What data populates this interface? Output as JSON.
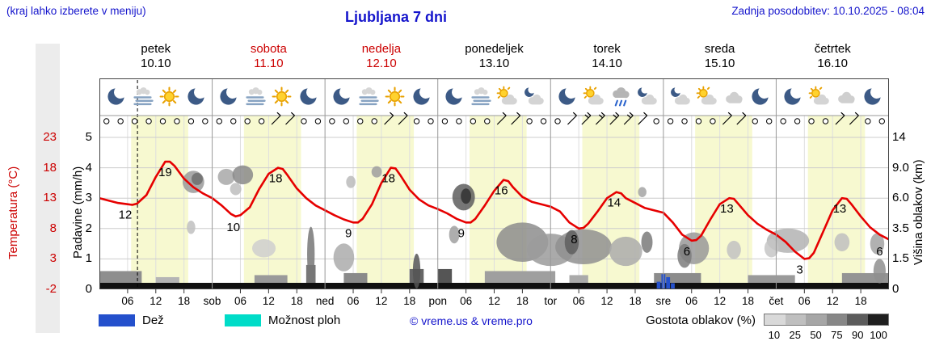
{
  "header": {
    "hint": "(kraj lahko izberete v meniju)",
    "title": "Ljubljana 7 dni",
    "updated": "Zadnja posodobitev: 10.10.2025 - 08:04"
  },
  "axes": {
    "temp_label": "Temperatura (°C)",
    "precip_label": "Padavine (mm/h)",
    "cloud_label": "Višina oblakov (km)",
    "temp_ticks": [
      "23",
      "18",
      "13",
      "8",
      "3",
      "-2"
    ],
    "precip_ticks": [
      "5",
      "4",
      "3",
      "2",
      "1",
      "0"
    ],
    "cloud_ticks": [
      "14",
      "9.0",
      "6.0",
      "3.5",
      "1.5",
      "0"
    ]
  },
  "days": [
    {
      "name": "petek",
      "date": "10.10",
      "color": "#000000",
      "abbrev": null,
      "icons": [
        "moon",
        "fog",
        "sun",
        "moon"
      ]
    },
    {
      "name": "sobota",
      "date": "11.10",
      "color": "#cc0000",
      "abbrev": "sob",
      "icons": [
        "moon",
        "fog",
        "sun",
        "moon"
      ]
    },
    {
      "name": "nedelja",
      "date": "12.10",
      "color": "#cc0000",
      "abbrev": "ned",
      "icons": [
        "moon",
        "fog",
        "sun",
        "moon"
      ]
    },
    {
      "name": "ponedeljek",
      "date": "13.10",
      "color": "#000000",
      "abbrev": "pon",
      "icons": [
        "moon",
        "fog",
        "sun-cloud",
        "moon-cloud"
      ]
    },
    {
      "name": "torek",
      "date": "14.10",
      "color": "#000000",
      "abbrev": "tor",
      "icons": [
        "moon",
        "sun-cloud",
        "rain",
        "moon-cloud"
      ]
    },
    {
      "name": "sreda",
      "date": "15.10",
      "color": "#000000",
      "abbrev": "sre",
      "icons": [
        "moon-cloud",
        "sun-cloud",
        "cloud",
        "moon"
      ]
    },
    {
      "name": "četrtek",
      "date": "16.10",
      "color": "#000000",
      "abbrev": "čet",
      "icons": [
        "moon",
        "sun-cloud",
        "cloud",
        "moon"
      ]
    }
  ],
  "legend": {
    "rain_label": "Dež",
    "rain_color": "#2450cc",
    "showers_label": "Možnost ploh",
    "showers_color": "#00dcc8",
    "credit": "© vreme.us & vreme.pro",
    "cloud_density_label": "Gostota oblakov (%)",
    "density_values": [
      "10",
      "25",
      "50",
      "75",
      "90",
      "100"
    ],
    "density_colors": [
      "#d9d9d9",
      "#bfbfbf",
      "#a6a6a6",
      "#878787",
      "#5c5c5c",
      "#1f1f1f"
    ]
  },
  "chart_data": {
    "type": "line",
    "title": "Ljubljana 7 dni",
    "x_unit": "hours from 10.10. 00:00 (7 days)",
    "x_range": [
      0,
      168
    ],
    "now_hour": 8.1,
    "day_band": [
      6.75,
      18.9
    ],
    "time_tick_labels": [
      "06",
      "12",
      "18"
    ],
    "colors": {
      "day_band": "#f7f9d0",
      "temp_line": "#e60000",
      "grid": "#cccccc",
      "frame": "#444444"
    },
    "temp_axis": {
      "tick_values": [
        -2,
        3,
        8,
        13,
        18,
        23
      ],
      "unit": "°C"
    },
    "precip_axis": {
      "tick_values": [
        0,
        1,
        2,
        3,
        4,
        5
      ],
      "unit": "mm/h"
    },
    "cloud_axis": {
      "tick_values_km": [
        0,
        1.5,
        3.5,
        6,
        9,
        14
      ],
      "unit": "km"
    },
    "temperature_points": [
      [
        0,
        13
      ],
      [
        2,
        12.6
      ],
      [
        4,
        12.2
      ],
      [
        6,
        12
      ],
      [
        7,
        11.9
      ],
      [
        8,
        12.1
      ],
      [
        10,
        13.5
      ],
      [
        12,
        16.5
      ],
      [
        14,
        19
      ],
      [
        15,
        19
      ],
      [
        16,
        18.3
      ],
      [
        18,
        16.2
      ],
      [
        20,
        14.8
      ],
      [
        22,
        13.8
      ],
      [
        24,
        13
      ],
      [
        26,
        11.8
      ],
      [
        28,
        10.4
      ],
      [
        29,
        10
      ],
      [
        30,
        10.2
      ],
      [
        32,
        11.5
      ],
      [
        34,
        14.5
      ],
      [
        36,
        17
      ],
      [
        38,
        18
      ],
      [
        39,
        17.8
      ],
      [
        40,
        16.8
      ],
      [
        42,
        14.6
      ],
      [
        44,
        13
      ],
      [
        46,
        11.8
      ],
      [
        48,
        11
      ],
      [
        50,
        10.2
      ],
      [
        52,
        9.5
      ],
      [
        54,
        9
      ],
      [
        55,
        9
      ],
      [
        56,
        9.6
      ],
      [
        58,
        12
      ],
      [
        60,
        15.5
      ],
      [
        62,
        18
      ],
      [
        63,
        17.9
      ],
      [
        64,
        16.8
      ],
      [
        66,
        14.4
      ],
      [
        68,
        12.8
      ],
      [
        70,
        11.8
      ],
      [
        72,
        11.2
      ],
      [
        74,
        10.5
      ],
      [
        76,
        9.6
      ],
      [
        78,
        9
      ],
      [
        79,
        9
      ],
      [
        80,
        9.6
      ],
      [
        82,
        11.8
      ],
      [
        84,
        14.2
      ],
      [
        86,
        16
      ],
      [
        87,
        15.8
      ],
      [
        88,
        14.8
      ],
      [
        90,
        13.2
      ],
      [
        92,
        12.4
      ],
      [
        94,
        12
      ],
      [
        96,
        11.6
      ],
      [
        98,
        10.8
      ],
      [
        100,
        9
      ],
      [
        102,
        8
      ],
      [
        103,
        8.1
      ],
      [
        104,
        8.8
      ],
      [
        106,
        10.8
      ],
      [
        108,
        13
      ],
      [
        110,
        14
      ],
      [
        111,
        13.8
      ],
      [
        112,
        13
      ],
      [
        114,
        12.2
      ],
      [
        116,
        11.4
      ],
      [
        118,
        11
      ],
      [
        120,
        10.6
      ],
      [
        122,
        9
      ],
      [
        124,
        7
      ],
      [
        126,
        6
      ],
      [
        127,
        6.1
      ],
      [
        128,
        6.8
      ],
      [
        130,
        9.5
      ],
      [
        132,
        12
      ],
      [
        134,
        13
      ],
      [
        135,
        12.9
      ],
      [
        136,
        12
      ],
      [
        138,
        10.2
      ],
      [
        140,
        8.8
      ],
      [
        142,
        7.8
      ],
      [
        144,
        7
      ],
      [
        146,
        5.8
      ],
      [
        148,
        4.2
      ],
      [
        150,
        3
      ],
      [
        151,
        3.1
      ],
      [
        152,
        4
      ],
      [
        154,
        7.5
      ],
      [
        156,
        11
      ],
      [
        158,
        13
      ],
      [
        159,
        12.9
      ],
      [
        160,
        12
      ],
      [
        162,
        10
      ],
      [
        164,
        8.2
      ],
      [
        166,
        7
      ],
      [
        168,
        6.2
      ]
    ],
    "temperature_labels": [
      [
        5.5,
        12
      ],
      [
        14,
        19
      ],
      [
        28.5,
        10
      ],
      [
        37.5,
        18
      ],
      [
        53,
        9
      ],
      [
        61.5,
        18
      ],
      [
        77,
        9
      ],
      [
        85.5,
        16
      ],
      [
        101,
        8
      ],
      [
        109.5,
        14
      ],
      [
        125,
        6
      ],
      [
        133.5,
        13
      ],
      [
        149,
        3
      ],
      [
        157.5,
        13
      ],
      [
        166,
        6
      ]
    ],
    "wind": {
      "symbol_step_h": 3,
      "first_h": 1.5,
      "calm_symbol": "circle",
      "barbs": [
        [
          37.5,
          1
        ],
        [
          40.5,
          1
        ],
        [
          61.5,
          1
        ],
        [
          64.5,
          1
        ],
        [
          85.5,
          1
        ],
        [
          88.5,
          1
        ],
        [
          100.5,
          1
        ],
        [
          103.5,
          2
        ],
        [
          106.5,
          2
        ],
        [
          109.5,
          2
        ],
        [
          112.5,
          2
        ],
        [
          115.5,
          1
        ],
        [
          133.5,
          1
        ],
        [
          136.5,
          1
        ],
        [
          157.5,
          1
        ],
        [
          160.5,
          1
        ]
      ]
    },
    "cloud_blobs": [
      [
        20,
        7.6,
        2.3,
        1.1,
        "#9a9a9a"
      ],
      [
        20.8,
        7.9,
        1.2,
        0.6,
        "#6f6f6f"
      ],
      [
        19.5,
        3.6,
        0.9,
        0.5,
        "#c0c0c0"
      ],
      [
        27,
        8.1,
        1.8,
        0.8,
        "#a8a8a8"
      ],
      [
        30.5,
        8.3,
        2.2,
        1.0,
        "#8a8a8a"
      ],
      [
        29,
        6.9,
        1.2,
        0.6,
        "#bdbdbd"
      ],
      [
        35,
        2.2,
        2.5,
        0.6,
        "#cfcfcf"
      ],
      [
        45,
        1.8,
        0.8,
        1.6,
        "#777777"
      ],
      [
        52,
        1.6,
        2.2,
        0.8,
        "#ababab"
      ],
      [
        53.5,
        7.6,
        1.0,
        0.6,
        "#bbbbbb"
      ],
      [
        59,
        8.6,
        1.1,
        0.6,
        "#9f9f9f"
      ],
      [
        67.5,
        0.9,
        0.8,
        0.9,
        "#555555"
      ],
      [
        77.5,
        6.1,
        2.4,
        1.2,
        "#5e5e5e"
      ],
      [
        78,
        6.2,
        1.1,
        0.7,
        "#333333"
      ],
      [
        75.5,
        3.1,
        1.1,
        0.6,
        "#a0a0a0"
      ],
      [
        90,
        2.6,
        5.5,
        1.3,
        "#8d8d8d"
      ],
      [
        96,
        2.1,
        5.0,
        1.0,
        "#9b9b9b"
      ],
      [
        103,
        2.3,
        6.0,
        1.1,
        "#909090"
      ],
      [
        100.5,
        2.6,
        1.5,
        0.8,
        "#5f5f5f"
      ],
      [
        112,
        2.0,
        3.5,
        0.9,
        "#ababab"
      ],
      [
        116.5,
        2.6,
        1.2,
        0.7,
        "#7a7a7a"
      ],
      [
        115.5,
        6.6,
        0.9,
        0.5,
        "#a5a5a5"
      ],
      [
        126.5,
        2.2,
        3.2,
        1.0,
        "#999999"
      ],
      [
        124.5,
        1.7,
        1.5,
        0.7,
        "#7c7c7c"
      ],
      [
        135,
        2.1,
        1.5,
        0.6,
        "#c2c2c2"
      ],
      [
        146.5,
        2.7,
        4.5,
        0.8,
        "#b3b3b3"
      ],
      [
        143,
        2.2,
        1.5,
        0.6,
        "#c6c6c6"
      ],
      [
        158,
        2.6,
        1.6,
        0.6,
        "#c0c0c0"
      ],
      [
        165.5,
        2.5,
        1.5,
        0.7,
        "#a3a3a3"
      ],
      [
        166,
        0.9,
        1.3,
        0.6,
        "#8f8f8f"
      ]
    ],
    "ground_strip": {
      "top_km": 0.32,
      "color": "#101010"
    },
    "ground_fringes": [
      [
        0,
        9,
        0.9,
        "#8e8e8e"
      ],
      [
        12,
        17,
        0.6,
        "#b5b5b5"
      ],
      [
        33,
        40,
        0.7,
        "#9a9a9a"
      ],
      [
        44,
        46,
        1.2,
        "#777777"
      ],
      [
        52,
        57,
        0.8,
        "#8a8a8a"
      ],
      [
        66,
        69,
        1.0,
        "#666666"
      ],
      [
        72,
        75,
        1.0,
        "#555555"
      ],
      [
        82,
        97,
        0.9,
        "#9f9f9f"
      ],
      [
        100,
        104,
        0.7,
        "#aaaaaa"
      ],
      [
        118,
        128,
        0.8,
        "#8c8c8c"
      ],
      [
        138,
        148,
        0.7,
        "#9a9a9a"
      ],
      [
        158,
        168,
        0.8,
        "#949494"
      ]
    ],
    "precip_bars": [
      [
        119,
        0.25
      ],
      [
        120,
        0.5
      ],
      [
        121,
        0.4
      ],
      [
        122,
        0.2
      ]
    ]
  }
}
